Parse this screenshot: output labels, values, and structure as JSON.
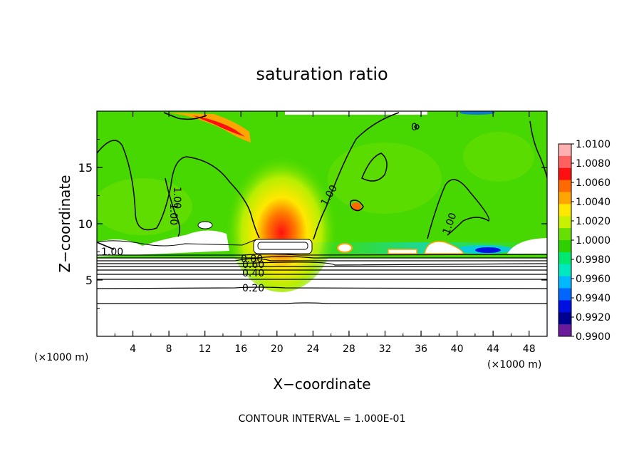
{
  "chart_data": {
    "type": "heatmap",
    "title": "saturation ratio",
    "xlabel": "X−coordinate",
    "ylabel": "Z−coordinate",
    "x_unit": "(×1000 m)",
    "x_unit_right": "(×1000 m)",
    "xlim": [
      0,
      50
    ],
    "ylim": [
      0,
      20
    ],
    "x_ticks": [
      "4",
      "8",
      "12",
      "16",
      "20",
      "24",
      "28",
      "32",
      "36",
      "40",
      "44",
      "48"
    ],
    "y_ticks": [
      "5",
      "10",
      "15"
    ],
    "colorbar": {
      "labels": [
        "1.0100",
        "1.0080",
        "1.0060",
        "1.0040",
        "1.0020",
        "1.0000",
        "0.9980",
        "0.9960",
        "0.9940",
        "0.9920",
        "0.9900"
      ],
      "colors": [
        "#ffb0b0",
        "#ff6060",
        "#ff1010",
        "#ff6a00",
        "#ffa500",
        "#ffe800",
        "#c8f000",
        "#66e000",
        "#2ed000",
        "#00e870",
        "#00e8c0",
        "#00b8ff",
        "#0066ff",
        "#0010e0",
        "#000090",
        "#6a1a9a"
      ]
    },
    "contour_labels": [
      "1.00",
      "1.00",
      "1.00",
      "1.00",
      "1.00",
      "0",
      "0.80",
      "0.60",
      "0.40",
      "0.20"
    ],
    "contour_interval_text": "CONTOUR INTERVAL = 1.000E-01"
  }
}
